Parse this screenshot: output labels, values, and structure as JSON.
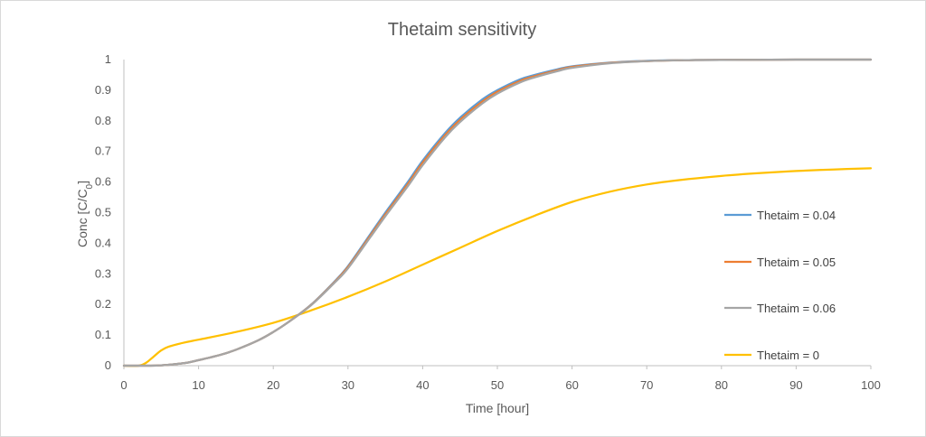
{
  "chart_data": {
    "type": "line",
    "title": "Thetaim sensitivity",
    "xlabel": "Time [hour]",
    "ylabel": "Conc [C/C",
    "ylabel_sub": "0",
    "ylabel_suffix": "]",
    "xlim": [
      0,
      100
    ],
    "ylim": [
      0,
      1
    ],
    "xticks": [
      0,
      10,
      20,
      30,
      40,
      50,
      60,
      70,
      80,
      90,
      100
    ],
    "yticks": [
      0,
      0.1,
      0.2,
      0.3,
      0.4,
      0.5,
      0.6,
      0.7,
      0.8,
      0.9,
      1
    ],
    "grid": false,
    "legend_position": "right",
    "series": [
      {
        "name": "Thetaim = 0.04",
        "color": "#5b9bd5",
        "x": [
          0,
          3,
          5,
          8,
          10,
          13,
          15,
          18,
          20,
          22,
          25,
          28,
          30,
          33,
          35,
          38,
          40,
          43,
          45,
          48,
          50,
          53,
          55,
          58,
          60,
          65,
          70,
          75,
          80,
          90,
          100
        ],
        "y": [
          0,
          0,
          0.001,
          0.008,
          0.018,
          0.036,
          0.052,
          0.083,
          0.11,
          0.142,
          0.198,
          0.27,
          0.325,
          0.43,
          0.5,
          0.6,
          0.67,
          0.76,
          0.81,
          0.87,
          0.9,
          0.935,
          0.95,
          0.968,
          0.978,
          0.99,
          0.996,
          0.998,
          0.999,
          1.0,
          1.0
        ]
      },
      {
        "name": "Thetaim = 0.05",
        "color": "#ed7d31",
        "x": [
          0,
          3,
          5,
          8,
          10,
          13,
          15,
          18,
          20,
          22,
          25,
          28,
          30,
          33,
          35,
          38,
          40,
          43,
          45,
          48,
          50,
          53,
          55,
          58,
          60,
          65,
          70,
          75,
          80,
          90,
          100
        ],
        "y": [
          0,
          0,
          0.001,
          0.008,
          0.018,
          0.036,
          0.052,
          0.083,
          0.11,
          0.142,
          0.197,
          0.268,
          0.322,
          0.425,
          0.494,
          0.593,
          0.663,
          0.753,
          0.803,
          0.863,
          0.895,
          0.93,
          0.946,
          0.965,
          0.976,
          0.989,
          0.995,
          0.998,
          0.999,
          1.0,
          1.0
        ]
      },
      {
        "name": "Thetaim = 0.06",
        "color": "#a5a5a5",
        "x": [
          0,
          3,
          5,
          8,
          10,
          13,
          15,
          18,
          20,
          22,
          25,
          28,
          30,
          33,
          35,
          38,
          40,
          43,
          45,
          48,
          50,
          53,
          55,
          58,
          60,
          65,
          70,
          75,
          80,
          90,
          100
        ],
        "y": [
          0,
          0,
          0.001,
          0.008,
          0.018,
          0.036,
          0.052,
          0.083,
          0.11,
          0.142,
          0.196,
          0.266,
          0.318,
          0.42,
          0.488,
          0.586,
          0.655,
          0.746,
          0.796,
          0.857,
          0.889,
          0.925,
          0.942,
          0.962,
          0.973,
          0.988,
          0.995,
          0.998,
          0.999,
          1.0,
          1.0
        ]
      },
      {
        "name": "Thetaim = 0",
        "color": "#ffc000",
        "x": [
          0,
          2,
          3,
          4,
          5,
          6,
          8,
          10,
          15,
          20,
          25,
          30,
          35,
          40,
          45,
          50,
          55,
          60,
          65,
          70,
          75,
          80,
          85,
          90,
          95,
          100
        ],
        "y": [
          0,
          0,
          0.01,
          0.03,
          0.05,
          0.062,
          0.075,
          0.085,
          0.11,
          0.14,
          0.18,
          0.225,
          0.275,
          0.33,
          0.385,
          0.44,
          0.49,
          0.535,
          0.568,
          0.592,
          0.608,
          0.62,
          0.629,
          0.636,
          0.641,
          0.645
        ]
      }
    ]
  }
}
